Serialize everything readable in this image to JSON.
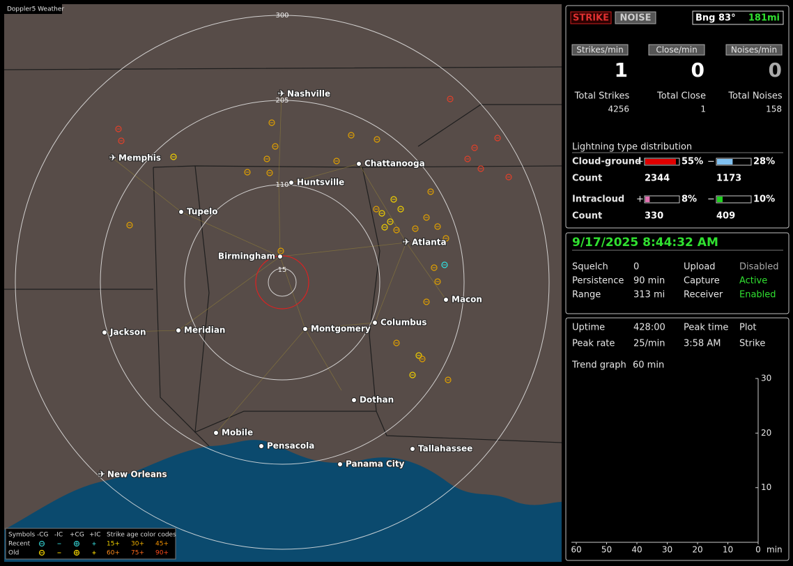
{
  "map": {
    "title": "Doppler5 Weather",
    "range_labels": [
      15,
      110,
      205,
      300
    ],
    "cities": [
      "Nashville",
      "Memphis",
      "Chattanooga",
      "Huntsville",
      "Tupelo",
      "Birmingham",
      "Atlanta",
      "Macon",
      "Columbus",
      "Montgomery",
      "Meridian",
      "Jackson",
      "Dothan",
      "Mobile",
      "Pensacola",
      "Tallahassee",
      "Panama City",
      "New Orleans"
    ],
    "legend": {
      "header": [
        "Symbols",
        "-CG",
        "-IC",
        "+CG",
        "+IC"
      ],
      "age_title": "Strike age color codes",
      "rows": [
        "Recent",
        "Old"
      ],
      "recent_ages": [
        "15+",
        "30+",
        "45+"
      ],
      "old_ages": [
        "60+",
        "75+",
        "90+"
      ]
    }
  },
  "panel": {
    "buttons": [
      "STRIKE",
      "NOISE"
    ],
    "bearing": "Bng 83°",
    "distance": "181mi",
    "rates": [
      {
        "label": "Strikes/min",
        "value": 1
      },
      {
        "label": "Close/min",
        "value": 0
      },
      {
        "label": "Noises/min",
        "value": 0
      }
    ],
    "totals": [
      {
        "label": "Total Strikes",
        "value": 4256
      },
      {
        "label": "Total Close",
        "value": 1
      },
      {
        "label": "Total Noises",
        "value": 158
      }
    ],
    "distribution": {
      "title": "Lightning type distribution",
      "rows": [
        {
          "name": "Cloud-ground",
          "plus": "+",
          "minus": "−",
          "plus_pct": {
            "value": 55,
            "label": "55%"
          },
          "minus_pct": {
            "value": 28,
            "label": "28%"
          },
          "count_label": "Count",
          "plus_count": 2344,
          "minus_count": 1173
        },
        {
          "name": "Intracloud",
          "plus": "+",
          "minus": "−",
          "plus_pct": {
            "value": 8,
            "label": "8%"
          },
          "minus_pct": {
            "value": 10,
            "label": "10%"
          },
          "count_label": "Count",
          "plus_count": 330,
          "minus_count": 409
        }
      ]
    },
    "datetime": "9/17/2025 8:44:32 AM",
    "settings": [
      [
        "Squelch",
        "0",
        "Upload",
        "Disabled"
      ],
      [
        "Persistence",
        "90 min",
        "Capture",
        "Active"
      ],
      [
        "Range",
        "313 mi",
        "Receiver",
        "Enabled"
      ]
    ],
    "stats": [
      [
        "Uptime",
        "428:00",
        "Peak time",
        "Plot"
      ],
      [
        "Peak rate",
        "25/min",
        "3:58 AM",
        "Strike"
      ]
    ],
    "trend": {
      "label": "Trend graph",
      "span": "60 min",
      "ylim": [
        0,
        30
      ],
      "yticks": [
        10,
        20,
        30
      ],
      "xlim": [
        60,
        0
      ],
      "xticks": [
        60,
        50,
        40,
        30,
        20,
        10,
        0
      ],
      "x_unit": "min"
    }
  }
}
